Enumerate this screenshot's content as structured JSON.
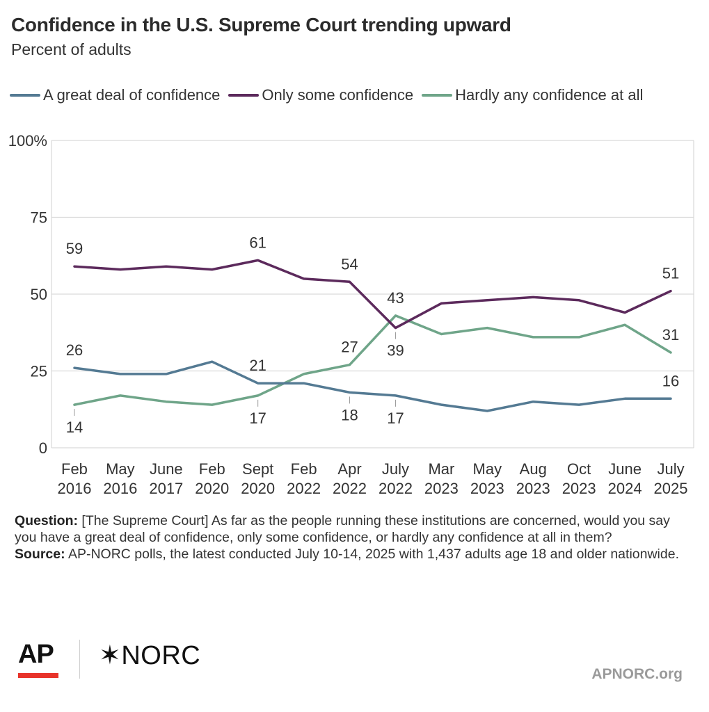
{
  "chart_data": {
    "type": "line",
    "title": "Confidence in the U.S. Supreme Court trending upward",
    "subtitle": "Percent of adults",
    "xlabel": "",
    "ylabel": "",
    "ylim": [
      0,
      100
    ],
    "yticks": [
      0,
      25,
      50,
      75,
      100
    ],
    "ytick_labels": [
      "0",
      "25",
      "50",
      "75",
      "100%"
    ],
    "grid": true,
    "legend_position": "top",
    "categories": [
      [
        "Feb",
        "2016"
      ],
      [
        "May",
        "2016"
      ],
      [
        "June",
        "2017"
      ],
      [
        "Feb",
        "2020"
      ],
      [
        "Sept",
        "2020"
      ],
      [
        "Feb",
        "2022"
      ],
      [
        "Apr",
        "2022"
      ],
      [
        "July",
        "2022"
      ],
      [
        "Mar",
        "2023"
      ],
      [
        "May",
        "2023"
      ],
      [
        "Aug",
        "2023"
      ],
      [
        "Oct",
        "2023"
      ],
      [
        "June",
        "2024"
      ],
      [
        "July",
        "2025"
      ]
    ],
    "series": [
      {
        "name": "A great deal of confidence",
        "color": "#547a93",
        "values": [
          26,
          24,
          24,
          28,
          21,
          21,
          18,
          17,
          14,
          12,
          15,
          14,
          16,
          16
        ]
      },
      {
        "name": "Only some confidence",
        "color": "#5c2a5c",
        "values": [
          59,
          58,
          59,
          58,
          61,
          55,
          54,
          39,
          47,
          48,
          49,
          48,
          44,
          51
        ]
      },
      {
        "name": "Hardly any confidence at all",
        "color": "#6fa589",
        "values": [
          14,
          17,
          15,
          14,
          17,
          24,
          27,
          43,
          37,
          39,
          36,
          36,
          40,
          31
        ]
      }
    ],
    "annotations": [
      {
        "series": 1,
        "index": 0,
        "text": "59",
        "pos": "above"
      },
      {
        "series": 1,
        "index": 4,
        "text": "61",
        "pos": "above"
      },
      {
        "series": 1,
        "index": 6,
        "text": "54",
        "pos": "above"
      },
      {
        "series": 1,
        "index": 7,
        "text": "39",
        "pos": "below"
      },
      {
        "series": 1,
        "index": 13,
        "text": "51",
        "pos": "above"
      },
      {
        "series": 0,
        "index": 0,
        "text": "26",
        "pos": "above"
      },
      {
        "series": 0,
        "index": 4,
        "text": "21",
        "pos": "above"
      },
      {
        "series": 0,
        "index": 6,
        "text": "18",
        "pos": "below"
      },
      {
        "series": 0,
        "index": 7,
        "text": "17",
        "pos": "below"
      },
      {
        "series": 0,
        "index": 13,
        "text": "16",
        "pos": "above"
      },
      {
        "series": 2,
        "index": 0,
        "text": "14",
        "pos": "below"
      },
      {
        "series": 2,
        "index": 4,
        "text": "17",
        "pos": "below"
      },
      {
        "series": 2,
        "index": 6,
        "text": "27",
        "pos": "above"
      },
      {
        "series": 2,
        "index": 7,
        "text": "43",
        "pos": "above"
      },
      {
        "series": 2,
        "index": 13,
        "text": "31",
        "pos": "above"
      }
    ]
  },
  "notes": {
    "question_label": "Question:",
    "question_text": " [The Supreme Court] As far as the people running these institutions are concerned, would you say you have a great deal of confidence, only some confidence, or hardly any confidence at all in them?",
    "source_label": "Source:",
    "source_text": "  AP-NORC polls, the latest conducted July 10-14, 2025 with 1,437 adults age 18 and older nationwide."
  },
  "logos": {
    "ap": "AP",
    "norc": "NORC",
    "norc_mark": "✶"
  },
  "footer": {
    "site": "APNORC.org"
  }
}
